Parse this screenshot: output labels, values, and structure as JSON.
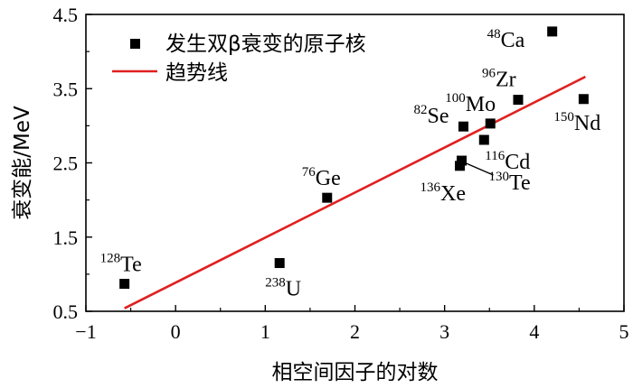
{
  "chart_data": {
    "type": "scatter",
    "xlabel": "相空间因子的对数",
    "ylabel": "衰变能/MeV",
    "xlim": [
      -1,
      5
    ],
    "ylim": [
      0.5,
      4.5
    ],
    "xticks": [
      -1,
      0,
      1,
      2,
      3,
      4,
      5
    ],
    "yticks": [
      0.5,
      1.5,
      2.5,
      3.5,
      4.5
    ],
    "xtick_labels": [
      "−1",
      "0",
      "1",
      "2",
      "3",
      "4",
      "5"
    ],
    "ytick_labels": [
      "0.5",
      "1.5",
      "2.5",
      "3.5",
      "4.5"
    ],
    "legend_position": "top-left",
    "series": [
      {
        "name": "发生双β衰变的原子核",
        "marker": "square",
        "color": "#000000",
        "points": [
          {
            "x": -0.57,
            "y": 0.87,
            "mass": "128",
            "element": "Te"
          },
          {
            "x": 1.16,
            "y": 1.15,
            "mass": "238",
            "element": "U"
          },
          {
            "x": 1.69,
            "y": 2.03,
            "mass": "76",
            "element": "Ge"
          },
          {
            "x": 3.17,
            "y": 2.46,
            "mass": "136",
            "element": "Xe"
          },
          {
            "x": 3.19,
            "y": 2.53,
            "mass": "130",
            "element": "Te"
          },
          {
            "x": 3.21,
            "y": 2.99,
            "mass": "82",
            "element": "Se"
          },
          {
            "x": 3.44,
            "y": 2.81,
            "mass": "116",
            "element": "Cd"
          },
          {
            "x": 3.51,
            "y": 3.03,
            "mass": "100",
            "element": "Mo"
          },
          {
            "x": 3.82,
            "y": 3.35,
            "mass": "96",
            "element": "Zr"
          },
          {
            "x": 4.2,
            "y": 4.27,
            "mass": "48",
            "element": "Ca"
          },
          {
            "x": 4.55,
            "y": 3.36,
            "mass": "150",
            "element": "Nd"
          }
        ]
      }
    ],
    "trend_line": {
      "name": "趋势线",
      "color": "#e02020",
      "x": [
        -0.57,
        4.57
      ],
      "y": [
        0.54,
        3.66
      ]
    }
  }
}
